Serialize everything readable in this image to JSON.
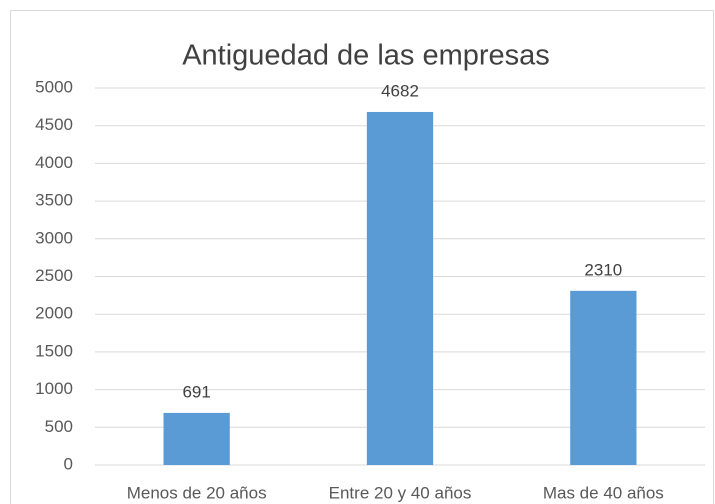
{
  "chart_data": {
    "type": "bar",
    "title": "Antiguedad de las empresas",
    "categories": [
      "Menos de 20 años",
      "Entre 20 y 40 años",
      "Mas de 40 años"
    ],
    "values": [
      691,
      4682,
      2310
    ],
    "color": "#5b9bd5",
    "ylim": [
      0,
      5000
    ],
    "yticks": [
      0,
      500,
      1000,
      1500,
      2000,
      2500,
      3000,
      3500,
      4000,
      4500,
      5000
    ],
    "grid": true
  }
}
